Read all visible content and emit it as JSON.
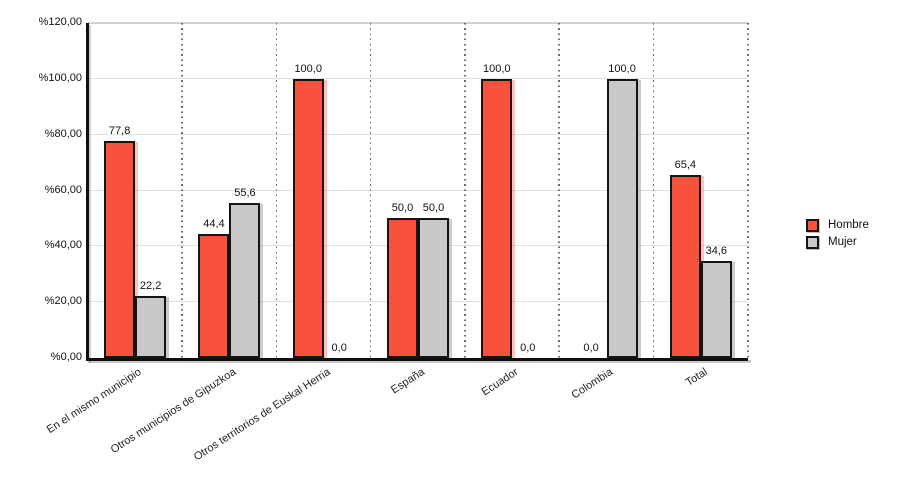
{
  "chart_data": {
    "type": "bar",
    "title": "",
    "categories": [
      "En el mismo municipio",
      "Otros municipios de Gipuzkoa",
      "Otros territorios de Euskal Herria",
      "España",
      "Ecuador",
      "Colombia",
      "Total"
    ],
    "series": [
      {
        "name": "Hombre",
        "color": "#f8523c",
        "shadow_color": "rgba(248,82,60,0.35)",
        "values": [
          77.8,
          44.4,
          100.0,
          50.0,
          100.0,
          0.0,
          65.4
        ],
        "value_labels": [
          "77,8",
          "44,4",
          "100,0",
          "50,0",
          "100,0",
          "0,0",
          "65,4"
        ]
      },
      {
        "name": "Mujer",
        "color": "#c9c9c9",
        "shadow_color": "rgba(110,110,110,0.35)",
        "values": [
          22.2,
          55.6,
          0.0,
          50.0,
          0.0,
          100.0,
          34.6
        ],
        "value_labels": [
          "22,2",
          "55,6",
          "0,0",
          "50,0",
          "0,0",
          "100,0",
          "34,6"
        ]
      }
    ],
    "y_axis": {
      "min": 0,
      "max": 120,
      "ticks": [
        {
          "value": 120,
          "label": "%120,00"
        },
        {
          "value": 100,
          "label": "%100,00"
        },
        {
          "value": 80,
          "label": "%80,00"
        },
        {
          "value": 60,
          "label": "%60,00"
        },
        {
          "value": 40,
          "label": "%40,00"
        },
        {
          "value": 20,
          "label": "%20,00"
        },
        {
          "value": 0,
          "label": "%0,00"
        }
      ]
    },
    "xlabel": "",
    "ylabel": "",
    "grid": true,
    "legend_position": "right",
    "category_separators": "dotted"
  }
}
